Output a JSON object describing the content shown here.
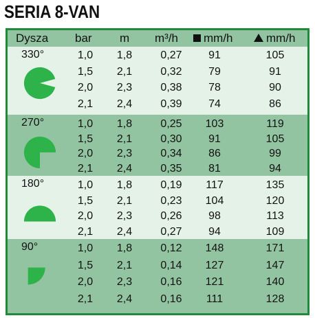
{
  "title": "SERIA 8-VAN",
  "colors": {
    "border": "#1f8a3a",
    "header_bg": "#93c4a1",
    "light_bg": "#e4f2e8",
    "sector_green": "#2db34a"
  },
  "header": {
    "nozzle": "Dysza",
    "bar": "bar",
    "m": "m",
    "flow": "m³/h",
    "square_rate": "mm/h",
    "square_icon": "square-icon",
    "triangle_rate": "mm/h",
    "triangle_icon": "triangle-icon"
  },
  "groups": [
    {
      "angle": "330°",
      "arc_degrees": 330,
      "rows": [
        {
          "bar": "1,0",
          "m": "1,8",
          "flow": "0,27",
          "square": "91",
          "triangle": "105"
        },
        {
          "bar": "1,5",
          "m": "2,1",
          "flow": "0,32",
          "square": "79",
          "triangle": "91"
        },
        {
          "bar": "2,0",
          "m": "2,3",
          "flow": "0,38",
          "square": "78",
          "triangle": "90"
        },
        {
          "bar": "2,1",
          "m": "2,4",
          "flow": "0,39",
          "square": "74",
          "triangle": "86"
        }
      ]
    },
    {
      "angle": "270°",
      "arc_degrees": 270,
      "rows": [
        {
          "bar": "1,0",
          "m": "1,8",
          "flow": "0,25",
          "square": "103",
          "triangle": "119"
        },
        {
          "bar": "1,5",
          "m": "2,1",
          "flow": "0,30",
          "square": "91",
          "triangle": "105"
        },
        {
          "bar": "2,0",
          "m": "2,3",
          "flow": "0,34",
          "square": "86",
          "triangle": "99"
        },
        {
          "bar": "2,1",
          "m": "2,4",
          "flow": "0,35",
          "square": "81",
          "triangle": "94"
        }
      ]
    },
    {
      "angle": "180°",
      "arc_degrees": 180,
      "rows": [
        {
          "bar": "1,0",
          "m": "1,8",
          "flow": "0,19",
          "square": "117",
          "triangle": "135"
        },
        {
          "bar": "1,5",
          "m": "2,1",
          "flow": "0,23",
          "square": "104",
          "triangle": "120"
        },
        {
          "bar": "2,0",
          "m": "2,3",
          "flow": "0,26",
          "square": "98",
          "triangle": "113"
        },
        {
          "bar": "2,1",
          "m": "2,4",
          "flow": "0,27",
          "square": "94",
          "triangle": "109"
        }
      ]
    },
    {
      "angle": "90°",
      "arc_degrees": 90,
      "rows": [
        {
          "bar": "1,0",
          "m": "1,8",
          "flow": "0,12",
          "square": "148",
          "triangle": "171"
        },
        {
          "bar": "1,5",
          "m": "2,1",
          "flow": "0,14",
          "square": "127",
          "triangle": "147"
        },
        {
          "bar": "2,0",
          "m": "2,3",
          "flow": "0,16",
          "square": "121",
          "triangle": "140"
        },
        {
          "bar": "2,1",
          "m": "2,4",
          "flow": "0,16",
          "square": "111",
          "triangle": "128"
        }
      ]
    }
  ]
}
